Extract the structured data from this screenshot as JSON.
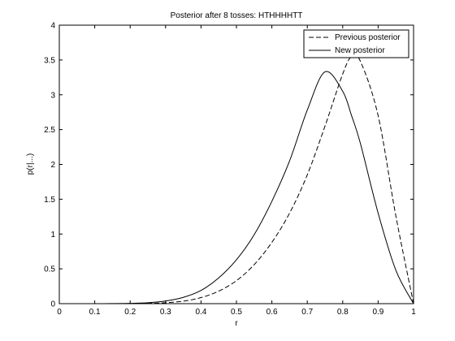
{
  "chart_data": {
    "type": "line",
    "title": "Posterior after 8 tosses: HTHHHHTT",
    "xlabel": "r",
    "ylabel": "p(r|...)",
    "xlim": [
      0,
      1
    ],
    "ylim": [
      0,
      4
    ],
    "x_ticks": [
      "0",
      "0.1",
      "0.2",
      "0.3",
      "0.4",
      "0.5",
      "0.6",
      "0.7",
      "0.8",
      "0.9",
      "1"
    ],
    "y_ticks": [
      "0",
      "0.5",
      "1",
      "1.5",
      "2",
      "2.5",
      "3",
      "3.5",
      "4"
    ],
    "grid": false,
    "legend_position": "top-right",
    "x": [
      0,
      0.05,
      0.1,
      0.15,
      0.2,
      0.25,
      0.3,
      0.35,
      0.4,
      0.45,
      0.5,
      0.55,
      0.6,
      0.65,
      0.7,
      0.75,
      0.8,
      0.825,
      0.85,
      0.9,
      0.95,
      1
    ],
    "series": [
      {
        "name": "Previous posterior",
        "style": "dashed",
        "color": "#000000",
        "values": [
          0,
          0,
          0,
          0,
          0.001,
          0.004,
          0.013,
          0.036,
          0.087,
          0.18,
          0.33,
          0.56,
          0.88,
          1.3,
          1.85,
          2.55,
          3.3,
          3.55,
          3.48,
          2.7,
          1.26,
          0
        ]
      },
      {
        "name": "New posterior",
        "style": "solid",
        "color": "#000000",
        "values": [
          0,
          0,
          0,
          0.001,
          0.004,
          0.013,
          0.038,
          0.09,
          0.19,
          0.37,
          0.63,
          0.99,
          1.47,
          2.05,
          2.78,
          3.33,
          3.05,
          2.7,
          2.3,
          1.3,
          0.48,
          0
        ]
      }
    ]
  }
}
